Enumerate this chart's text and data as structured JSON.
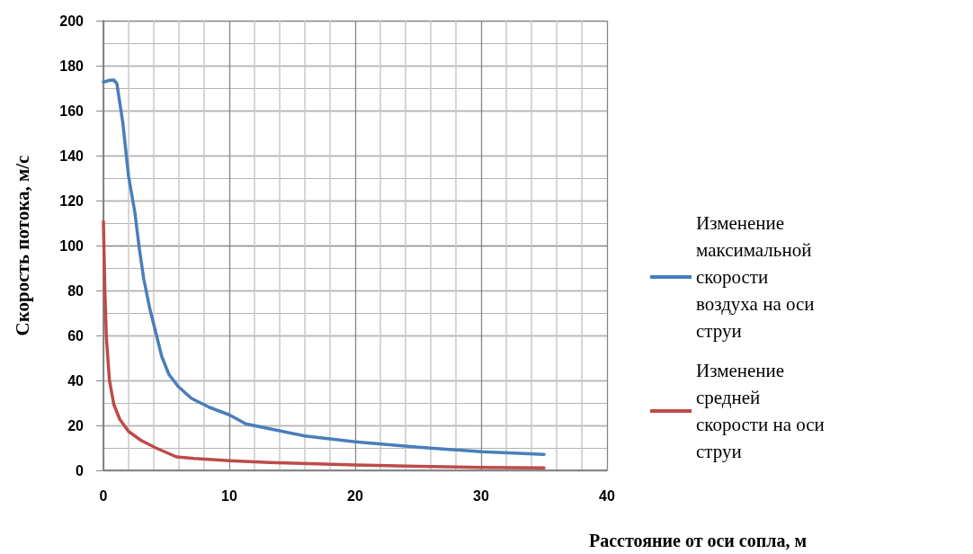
{
  "chart_data": {
    "type": "line",
    "xlabel": "Расстояние от оси сопла, м",
    "ylabel": "Скорость потока, м/с",
    "xlim": [
      0,
      40
    ],
    "xticks": [
      0,
      10,
      20,
      30,
      40
    ],
    "ylim": [
      0,
      200
    ],
    "yticks": [
      0,
      20,
      40,
      60,
      80,
      100,
      120,
      140,
      160,
      180,
      200
    ],
    "grid": true,
    "legend": "right",
    "marker": "none",
    "line_style": "solid",
    "series": [
      {
        "name": "Изменение максимальной скорости воздуха на оси струи",
        "color": "#4a7ebb",
        "x": [
          0,
          0.5,
          0.83,
          1.07,
          1.54,
          2.0,
          2.5,
          2.85,
          3.2,
          3.68,
          4.16,
          4.63,
          5.2,
          5.94,
          7.0,
          8.43,
          10,
          11.3,
          13.2,
          16,
          20,
          25,
          30,
          35
        ],
        "values": [
          172.7,
          173.5,
          173.6,
          172,
          154.7,
          130.7,
          114.7,
          98.7,
          85.3,
          72,
          61.3,
          50.7,
          42.7,
          37.3,
          32,
          28,
          24.7,
          20.7,
          18.5,
          15.3,
          12.7,
          10.3,
          8.3,
          7.1
        ]
      },
      {
        "name": "Изменение средней скорости на оси струи",
        "color": "#be4b48",
        "x": [
          0,
          0.12,
          0.24,
          0.48,
          0.83,
          1.3,
          2.0,
          3.0,
          4.16,
          5.8,
          7.2,
          10,
          13.2,
          20,
          25,
          30,
          35
        ],
        "values": [
          110.7,
          78.7,
          58.7,
          40,
          29.3,
          22.7,
          17.3,
          13.3,
          10,
          6,
          5.3,
          4.3,
          3.5,
          2.4,
          1.8,
          1.3,
          1.1
        ]
      }
    ]
  }
}
